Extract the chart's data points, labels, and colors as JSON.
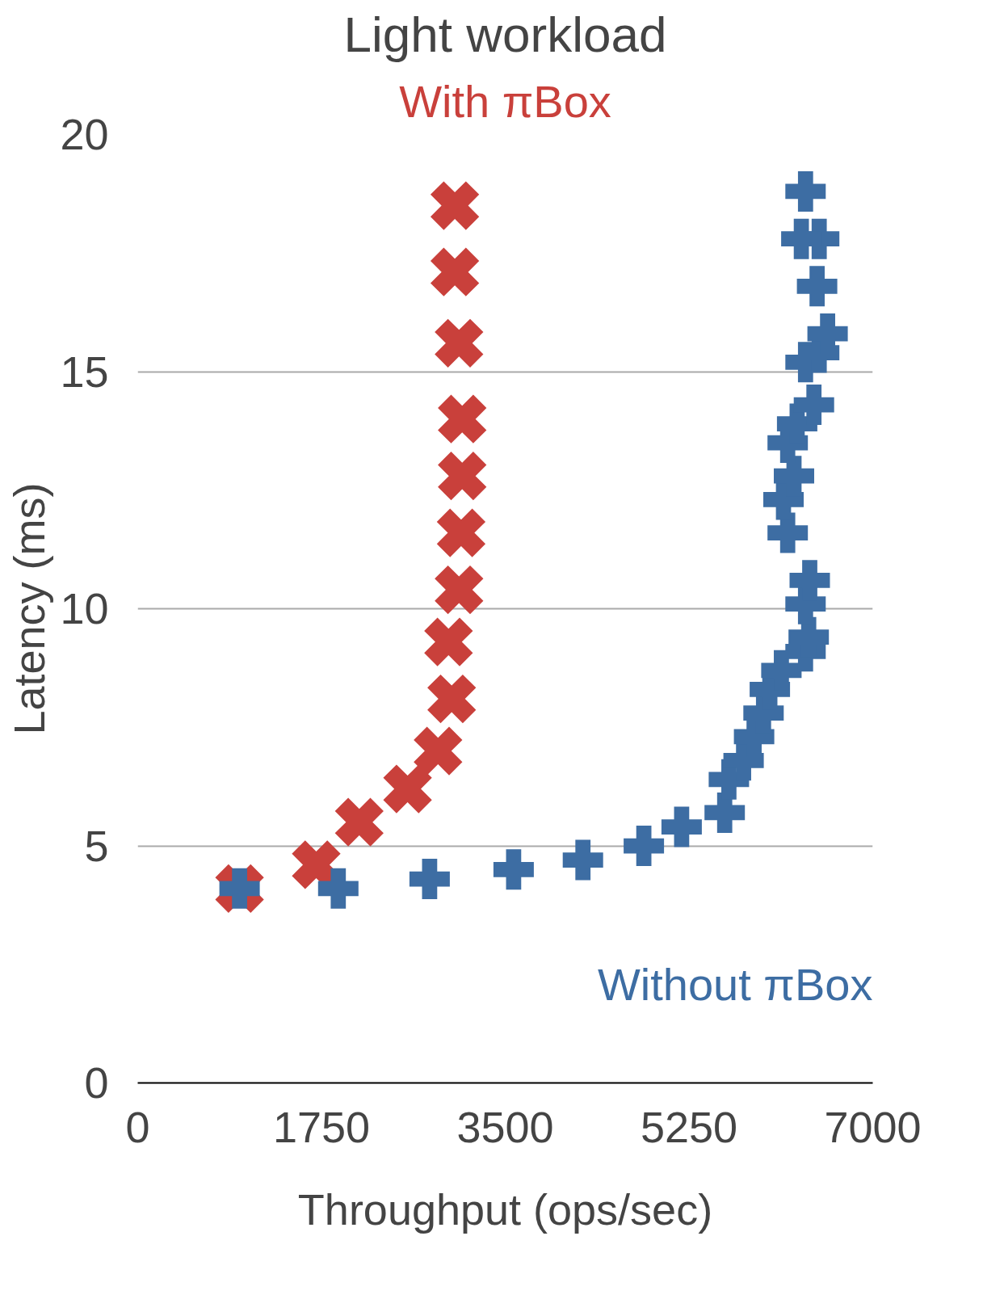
{
  "chart_data": {
    "type": "scatter",
    "title": "Light workload",
    "xlabel": "Throughput (ops/sec)",
    "ylabel": "Latency (ms)",
    "xlim": [
      0,
      7000
    ],
    "xticks": [
      0,
      1750,
      3500,
      5250,
      7000
    ],
    "ylim": [
      0,
      20
    ],
    "yticks": [
      0,
      5,
      10,
      15,
      20
    ],
    "grid": "y",
    "series": [
      {
        "name": "With πBox",
        "color": "#c9403b",
        "marker": "x",
        "x": [
          970,
          1700,
          2110,
          2570,
          2860,
          2990,
          2960,
          3060,
          3080,
          3090,
          3090,
          3060,
          3020,
          3020
        ],
        "values": [
          4.1,
          4.6,
          5.5,
          6.2,
          7.0,
          8.1,
          9.3,
          10.4,
          11.6,
          12.8,
          14.0,
          15.6,
          17.1,
          18.5
        ]
      },
      {
        "name": "Without πBox",
        "color": "#3d6da3",
        "marker": "cross",
        "x": [
          970,
          1910,
          2780,
          3580,
          4240,
          4820,
          5180,
          5590,
          5630,
          5770,
          5870,
          5960,
          6020,
          6130,
          6360,
          6390,
          6360,
          6400,
          6190,
          6150,
          6250,
          6190,
          6280,
          6440,
          6360,
          6490,
          6570,
          6470,
          6490,
          6320,
          6360
        ],
        "values": [
          4.1,
          4.1,
          4.3,
          4.5,
          4.7,
          5.0,
          5.4,
          5.7,
          6.4,
          6.8,
          7.3,
          7.8,
          8.3,
          8.7,
          9.1,
          9.4,
          10.1,
          10.6,
          11.6,
          12.3,
          12.8,
          13.5,
          13.9,
          14.3,
          15.2,
          15.4,
          15.8,
          16.8,
          17.8,
          17.8,
          18.8
        ]
      }
    ]
  }
}
